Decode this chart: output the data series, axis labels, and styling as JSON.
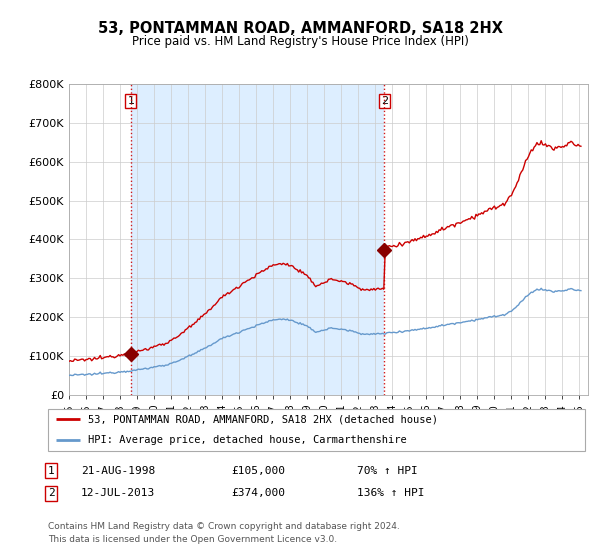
{
  "title": "53, PONTAMMAN ROAD, AMMANFORD, SA18 2HX",
  "subtitle": "Price paid vs. HM Land Registry's House Price Index (HPI)",
  "red_label": "53, PONTAMMAN ROAD, AMMANFORD, SA18 2HX (detached house)",
  "blue_label": "HPI: Average price, detached house, Carmarthenshire",
  "transaction1_label": "21-AUG-1998",
  "transaction1_price": "£105,000",
  "transaction1_pct": "70% ↑ HPI",
  "transaction2_label": "12-JUL-2013",
  "transaction2_price": "£374,000",
  "transaction2_pct": "136% ↑ HPI",
  "footer": "Contains HM Land Registry data © Crown copyright and database right 2024.\nThis data is licensed under the Open Government Licence v3.0.",
  "ylim": [
    0,
    800000
  ],
  "yticks": [
    0,
    100000,
    200000,
    300000,
    400000,
    500000,
    600000,
    700000,
    800000
  ],
  "red_color": "#cc0000",
  "blue_color": "#6699cc",
  "shade_color": "#ddeeff",
  "dot_color": "#880000",
  "t1_x": 1998.64,
  "t2_x": 2013.53,
  "transaction1_y": 105000,
  "transaction2_y": 374000,
  "xlim_left": 1995.0,
  "xlim_right": 2025.5
}
